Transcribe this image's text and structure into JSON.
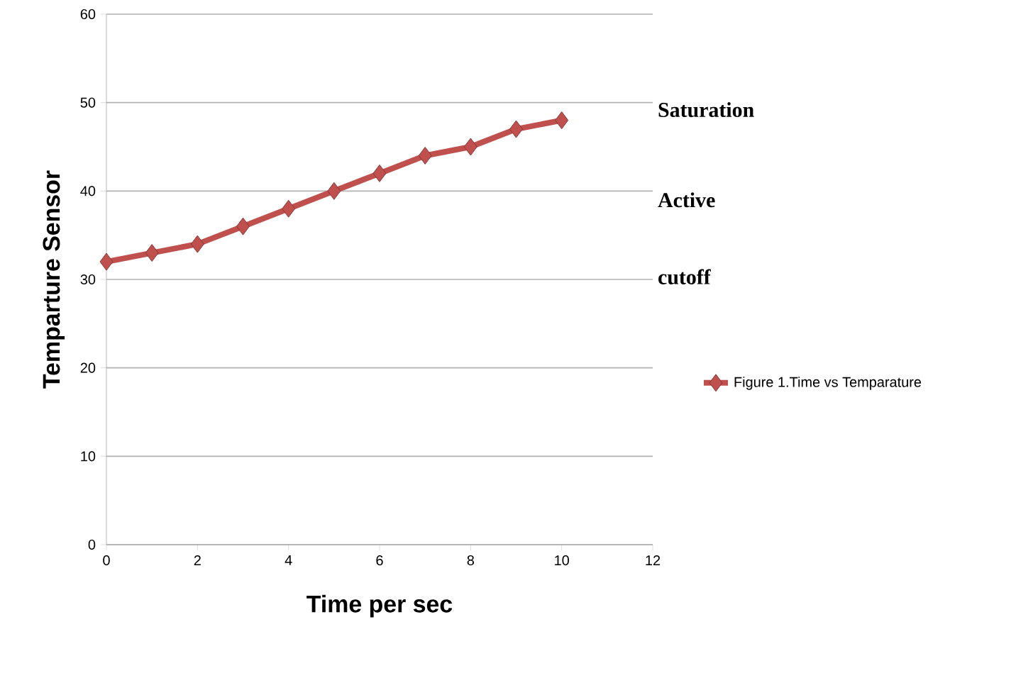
{
  "chart_data": {
    "type": "line",
    "xlabel": "Time per sec",
    "ylabel": "Temparture Sensor",
    "x": [
      0,
      1,
      2,
      3,
      4,
      5,
      6,
      7,
      8,
      9,
      10
    ],
    "series": [
      {
        "name": "Figure 1.Time vs Temparature",
        "color": "#c0504d",
        "values": [
          32,
          33,
          34,
          36,
          38,
          40,
          42,
          44,
          45,
          47,
          48
        ]
      }
    ],
    "xlim": [
      0,
      12
    ],
    "ylim": [
      0,
      60
    ],
    "xticks": [
      0,
      2,
      4,
      6,
      8,
      10,
      12
    ],
    "yticks": [
      0,
      10,
      20,
      30,
      40,
      50,
      60
    ],
    "grid": "y",
    "legend": "right",
    "marker": "diamond",
    "line_style": "solid",
    "annotations": [
      "Saturation",
      "Active",
      "cutoff"
    ]
  }
}
